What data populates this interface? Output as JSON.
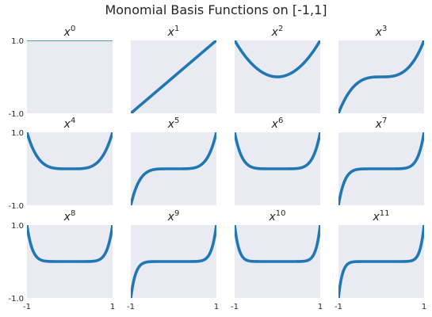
{
  "title": "Monomial Basis Functions on [-1,1]",
  "chart_data": {
    "type": "line",
    "title": "Monomial Basis Functions on [-1,1]",
    "grid": {
      "rows": 3,
      "cols": 4
    },
    "line_color": "#1f77b4",
    "face_color": "#eaeaf2",
    "xlim": [
      -1,
      1
    ],
    "ylim": [
      -1,
      1
    ],
    "x_tick_labels": [
      "-1",
      "1"
    ],
    "y_tick_labels": [
      "-1.0",
      "1.0"
    ],
    "x_ticks_shown_on_row": 3,
    "y_ticks_shown_on_col": 1,
    "function": "y = x^n",
    "panels": [
      {
        "base": "x",
        "exponent": "0",
        "n": 0
      },
      {
        "base": "x",
        "exponent": "1",
        "n": 1
      },
      {
        "base": "x",
        "exponent": "2",
        "n": 2
      },
      {
        "base": "x",
        "exponent": "3",
        "n": 3
      },
      {
        "base": "x",
        "exponent": "4",
        "n": 4
      },
      {
        "base": "x",
        "exponent": "5",
        "n": 5
      },
      {
        "base": "x",
        "exponent": "6",
        "n": 6
      },
      {
        "base": "x",
        "exponent": "7",
        "n": 7
      },
      {
        "base": "x",
        "exponent": "8",
        "n": 8
      },
      {
        "base": "x",
        "exponent": "9",
        "n": 9
      },
      {
        "base": "x",
        "exponent": "10",
        "n": 10
      },
      {
        "base": "x",
        "exponent": "11",
        "n": 11
      }
    ]
  }
}
